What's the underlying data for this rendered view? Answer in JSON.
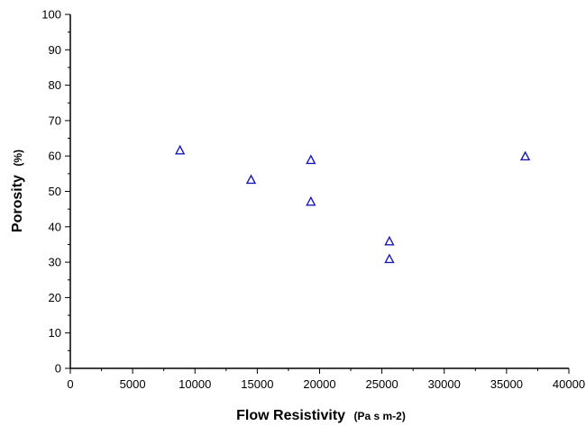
{
  "chart_data": {
    "type": "scatter",
    "x_label": {
      "main": "Flow Resistivity",
      "unit": "(Pa s m-2)"
    },
    "y_label": {
      "main": "Porosity",
      "unit": "(%)"
    },
    "xlim": [
      0,
      40000
    ],
    "ylim": [
      0,
      100
    ],
    "x_ticks": [
      0,
      5000,
      10000,
      15000,
      20000,
      25000,
      30000,
      35000,
      40000
    ],
    "y_ticks": [
      0,
      10,
      20,
      30,
      40,
      50,
      60,
      70,
      80,
      90,
      100
    ],
    "x_minor_step": 2500,
    "y_minor_step": 5,
    "grid": false,
    "marker": "open-triangle",
    "marker_color": "#1a1ab8",
    "series": [
      {
        "points": [
          {
            "x": 8800,
            "y": 61.5
          },
          {
            "x": 14500,
            "y": 53.2
          },
          {
            "x": 19300,
            "y": 58.8
          },
          {
            "x": 19300,
            "y": 47.0
          },
          {
            "x": 25600,
            "y": 35.8
          },
          {
            "x": 25600,
            "y": 30.8
          },
          {
            "x": 36500,
            "y": 59.8
          }
        ]
      }
    ]
  }
}
